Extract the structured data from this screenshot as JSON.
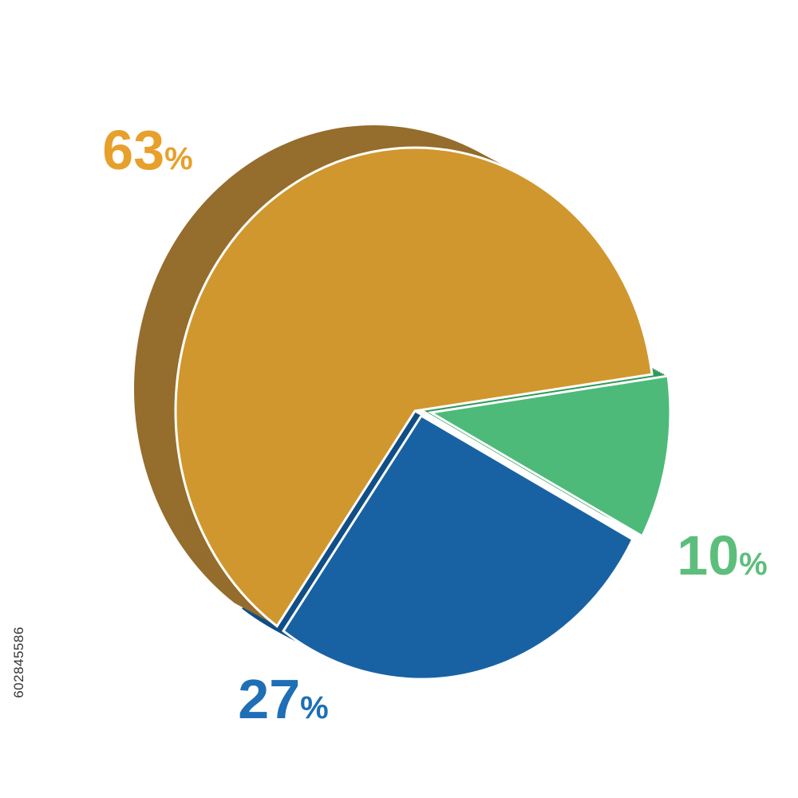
{
  "chart_data": {
    "type": "pie",
    "style": "3d",
    "title": "",
    "slices": [
      {
        "label": "63",
        "value": 63,
        "color": "#D0972E",
        "side_color": "#956D2C",
        "label_color": "#E7A02B"
      },
      {
        "label": "10",
        "value": 10,
        "color": "#4DBA7A",
        "side_color": "#2E9A5B",
        "label_color": "#5DBE7C"
      },
      {
        "label": "27",
        "value": 27,
        "color": "#1862A3",
        "side_color": "#114E86",
        "label_color": "#1E6FB5"
      }
    ],
    "percent_symbol": "%",
    "legend": "none",
    "grid": false
  },
  "stock_id": "602845586"
}
